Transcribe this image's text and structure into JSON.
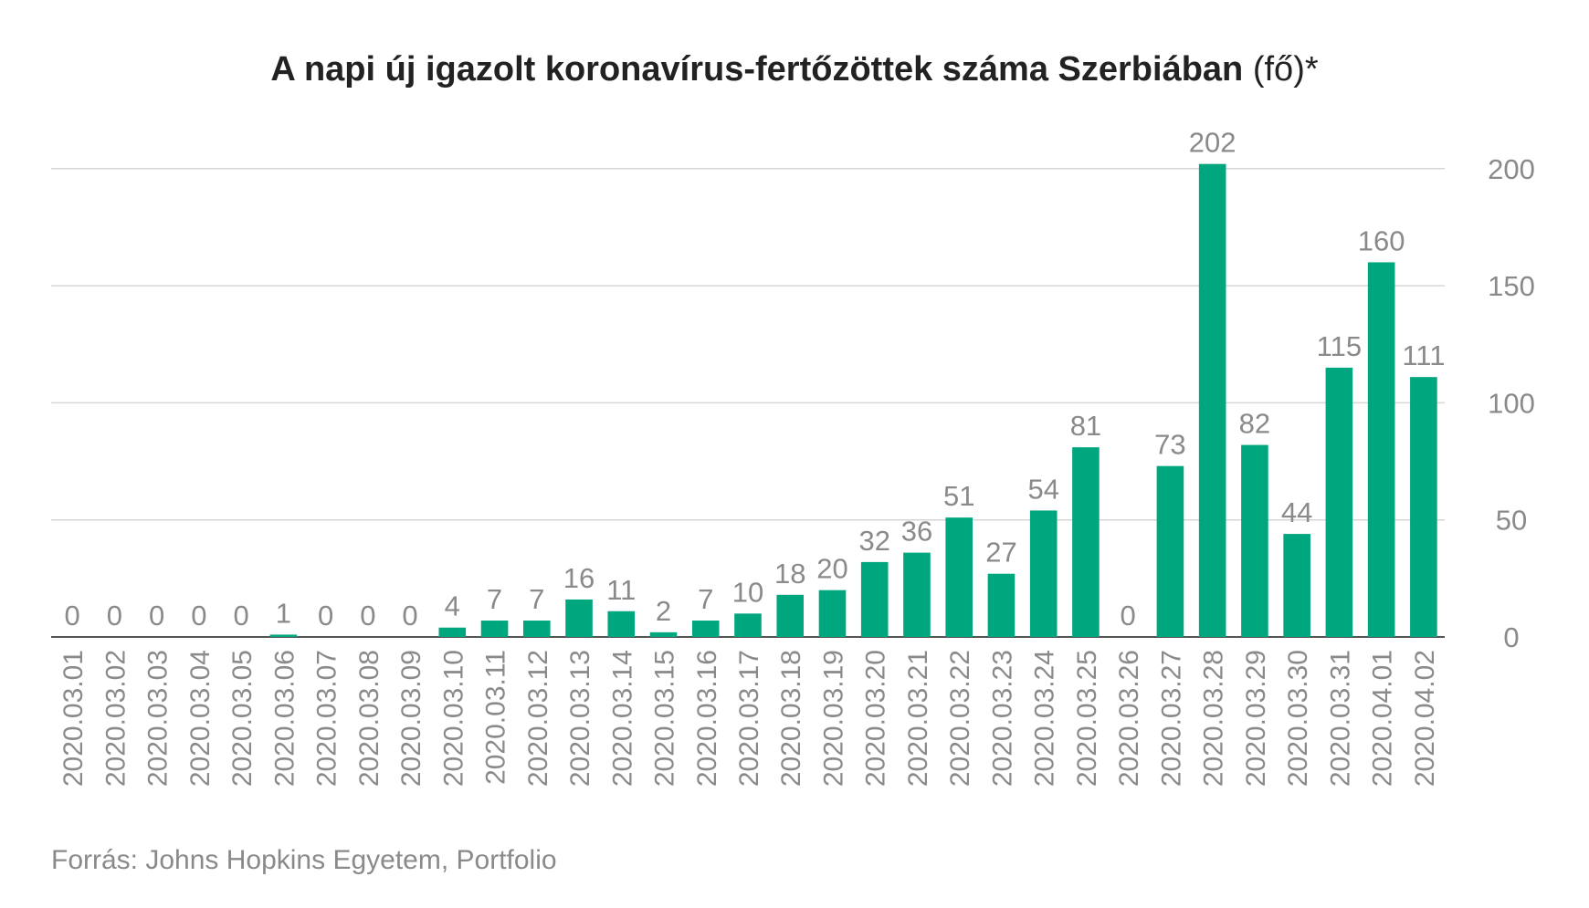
{
  "chart_data": {
    "type": "bar",
    "title": "A napi új igazolt koronavírus-fertőzöttek száma Szerbiában",
    "title_unit": "(fő)*",
    "source": "Forrás: Johns Hopkins Egyetem, Portfolio",
    "ylim": [
      0,
      210
    ],
    "yticks": [
      0,
      50,
      100,
      150,
      200
    ],
    "y_axis_position": "right",
    "grid": true,
    "bar_color": "#00a67e",
    "categories": [
      "2020.03.01",
      "2020.03.02",
      "2020.03.03",
      "2020.03.04",
      "2020.03.05",
      "2020.03.06",
      "2020.03.07",
      "2020.03.08",
      "2020.03.09",
      "2020.03.10",
      "2020.03.11",
      "2020.03.12",
      "2020.03.13",
      "2020.03.14",
      "2020.03.15",
      "2020.03.16",
      "2020.03.17",
      "2020.03.18",
      "2020.03.19",
      "2020.03.20",
      "2020.03.21",
      "2020.03.22",
      "2020.03.23",
      "2020.03.24",
      "2020.03.25",
      "2020.03.26",
      "2020.03.27",
      "2020.03.28",
      "2020.03.29",
      "2020.03.30",
      "2020.03.31",
      "2020.04.01",
      "2020.04.02"
    ],
    "values": [
      0,
      0,
      0,
      0,
      0,
      1,
      0,
      0,
      0,
      4,
      7,
      7,
      16,
      11,
      2,
      7,
      10,
      18,
      20,
      32,
      36,
      51,
      27,
      54,
      81,
      0,
      73,
      202,
      82,
      44,
      115,
      160,
      111
    ]
  }
}
